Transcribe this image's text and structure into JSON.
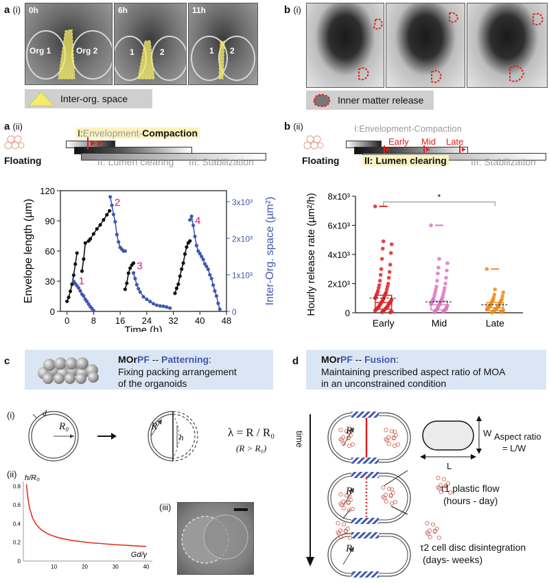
{
  "panel_a_i": {
    "label": "a",
    "sub": "(i)",
    "frames": [
      {
        "time": "0h",
        "left_label": "Org 1",
        "right_label": "Org 2"
      },
      {
        "time": "6h",
        "left_label": "1",
        "right_label": "2"
      },
      {
        "time": "11h",
        "left_label": "1",
        "right_label": "2"
      }
    ],
    "legend": "Inter-org. space",
    "legend_color": "#f4ec6a"
  },
  "panel_b_i": {
    "label": "b",
    "sub": "(i)",
    "legend": "Inner matter release",
    "legend_color": "#e02020"
  },
  "panel_a_ii": {
    "label": "a",
    "sub": "(ii)",
    "floating": "Floating",
    "stage1_prefix": "I:",
    "stage1_a": "Envelopment-",
    "stage1_b": "Compaction",
    "stage2": "II: Lumen clearing",
    "stage3": "III: Stabilization"
  },
  "panel_b_ii": {
    "label": "b",
    "sub": "(ii)",
    "floating": "Floating",
    "stage1": "I:Envelopment-Compaction",
    "stage2": "II: Lumen clearing",
    "stage3": "III: Stabilization",
    "markers": [
      "Early",
      "Mid",
      "Late"
    ]
  },
  "chart_data": [
    {
      "type": "line",
      "title": "",
      "xlabel": "Time (h)",
      "ylabel": "Envelope length (µm)",
      "y2label": "Inter-Org. space (µm²)",
      "xlim": [
        -2,
        48
      ],
      "ylim": [
        0,
        120
      ],
      "y2lim": [
        0,
        3300
      ],
      "xticks": [
        0,
        8,
        16,
        24,
        32,
        40,
        48
      ],
      "yticks": [
        0,
        30,
        60,
        90,
        120
      ],
      "y2ticks": [
        "0",
        "1x10³",
        "2x10³",
        "3x10³"
      ],
      "y2tick_values": [
        0,
        1000,
        2000,
        3000
      ],
      "series": [
        {
          "name": "Envelope length",
          "color": "#111111",
          "axis": "left",
          "segments": [
            [
              [
                0,
                10
              ],
              [
                0.5,
                14
              ],
              [
                1,
                20
              ],
              [
                1.5,
                27
              ],
              [
                2,
                36
              ],
              [
                2.5,
                47
              ],
              [
                3,
                58
              ]
            ],
            [
              [
                4.5,
                40
              ],
              [
                5,
                52
              ],
              [
                5.5,
                68
              ],
              [
                6.5,
                70
              ],
              [
                7,
                72
              ],
              [
                8,
                77
              ],
              [
                9,
                82
              ],
              [
                10,
                86
              ],
              [
                11,
                91
              ],
              [
                12,
                96
              ],
              [
                12.8,
                100
              ]
            ],
            [
              [
                17.5,
                22
              ],
              [
                18,
                28
              ],
              [
                18.5,
                38
              ],
              [
                19,
                43
              ],
              [
                19.5,
                46
              ],
              [
                20,
                48
              ]
            ],
            [
              [
                32.5,
                18
              ],
              [
                33,
                23
              ],
              [
                33.5,
                27
              ],
              [
                34,
                35
              ],
              [
                34.5,
                42
              ],
              [
                35,
                48
              ],
              [
                35.5,
                57
              ],
              [
                36,
                64
              ],
              [
                36.5,
                68
              ],
              [
                37,
                70
              ]
            ]
          ]
        },
        {
          "name": "Inter-Org. space",
          "color": "#3f57b0",
          "axis": "right",
          "segments": [
            [
              [
                2,
                820
              ],
              [
                2.5,
                760
              ],
              [
                3,
                700
              ],
              [
                3.5,
                640
              ],
              [
                4,
                560
              ],
              [
                4.5,
                470
              ],
              [
                5,
                420
              ],
              [
                5.5,
                330
              ],
              [
                6,
                270
              ],
              [
                6.5,
                200
              ],
              [
                7,
                130
              ],
              [
                7.5,
                80
              ],
              [
                8,
                20
              ]
            ],
            [
              [
                13,
                3130
              ],
              [
                13.5,
                2900
              ],
              [
                14,
                2650
              ],
              [
                14.5,
                2450
              ],
              [
                15,
                2100
              ],
              [
                15.5,
                1900
              ],
              [
                16,
                1750
              ],
              [
                16.5,
                1700
              ],
              [
                17,
                1650
              ],
              [
                17.5,
                1650
              ]
            ],
            [
              [
                20,
                1050
              ],
              [
                20.5,
                900
              ],
              [
                21,
                730
              ],
              [
                21.5,
                620
              ],
              [
                22,
                530
              ],
              [
                23,
                400
              ],
              [
                24,
                330
              ],
              [
                25,
                270
              ],
              [
                26,
                210
              ],
              [
                27,
                170
              ],
              [
                28,
                150
              ],
              [
                29,
                140
              ],
              [
                30,
                120
              ],
              [
                31,
                90
              ]
            ],
            [
              [
                37,
                2500
              ],
              [
                37.5,
                2600
              ],
              [
                38,
                2350
              ],
              [
                38.5,
                2050
              ],
              [
                39,
                1800
              ],
              [
                39.5,
                1650
              ],
              [
                40,
                1580
              ],
              [
                40.5,
                1500
              ],
              [
                41,
                1420
              ],
              [
                41.5,
                1300
              ],
              [
                42,
                1230
              ],
              [
                42.5,
                1150
              ],
              [
                43,
                1000
              ],
              [
                43.5,
                900
              ],
              [
                44,
                720
              ],
              [
                44.5,
                560
              ],
              [
                45,
                420
              ],
              [
                45.5,
                220
              ],
              [
                46,
                60
              ]
            ]
          ]
        }
      ],
      "annotations": [
        {
          "text": "1",
          "x": 3.5,
          "y": 27
        },
        {
          "text": "2",
          "x": 14.3,
          "y": 105
        },
        {
          "text": "3",
          "x": 21,
          "y": 42
        },
        {
          "text": "4",
          "x": 38.5,
          "y": 87
        }
      ],
      "annotation_color": "#d6147a"
    },
    {
      "type": "scatter",
      "title": "",
      "xlabel": "",
      "ylabel": "Hourly release rate (µm²/h)",
      "categories": [
        "Early",
        "Mid",
        "Late"
      ],
      "colors": [
        "#e02424",
        "#d977c6",
        "#f08a1a"
      ],
      "ylim": [
        0,
        8000
      ],
      "yticks": [
        "0",
        "2x10³",
        "4x10³",
        "6x10³",
        "8x10³"
      ],
      "ytick_values": [
        0,
        2000,
        4000,
        6000,
        8000
      ],
      "significance": "*",
      "box": [
        {
          "q1": 250,
          "median": 700,
          "q3": 1200,
          "mean": 1000,
          "max": 7300
        },
        {
          "q1": 200,
          "median": 550,
          "q3": 800,
          "mean": 750,
          "max": 6000
        },
        {
          "q1": 150,
          "median": 350,
          "q3": 700,
          "mean": 550,
          "max": 3000
        }
      ],
      "points": [
        [
          7300,
          4900,
          4700,
          4400,
          4100,
          3700,
          3300,
          3000,
          2800,
          2600,
          2400,
          2200,
          2000,
          1900,
          1800,
          1700,
          1600,
          1500,
          1400,
          1350,
          1300,
          1250,
          1200,
          1100,
          1050,
          1000,
          950,
          900,
          850,
          800,
          780,
          750,
          700,
          650,
          620,
          600,
          550,
          500,
          450,
          420,
          400,
          380,
          350,
          320,
          300,
          280,
          250,
          220,
          200,
          180,
          150,
          120,
          100,
          80,
          60,
          40,
          20
        ],
        [
          6000,
          3700,
          3400,
          3100,
          2900,
          2700,
          2400,
          2200,
          2000,
          1800,
          1700,
          1600,
          1500,
          1400,
          1300,
          1200,
          1100,
          1000,
          950,
          900,
          850,
          800,
          750,
          700,
          650,
          600,
          550,
          500,
          450,
          400,
          350,
          300,
          280,
          250,
          200,
          150,
          120,
          100,
          80,
          50,
          30
        ],
        [
          3000,
          1600,
          1400,
          1250,
          1150,
          1050,
          950,
          900,
          850,
          800,
          750,
          700,
          650,
          600,
          550,
          500,
          450,
          420,
          400,
          380,
          350,
          320,
          300,
          280,
          250,
          220,
          200,
          180,
          150,
          120,
          100,
          80,
          60,
          40,
          20
        ]
      ]
    },
    {
      "type": "line",
      "title": "",
      "xlabel": "Gd/γ",
      "ylabel": "h/R₀",
      "xlim": [
        0,
        42
      ],
      "ylim": [
        0,
        0.85
      ],
      "xticks": [
        10,
        20,
        30,
        40
      ],
      "yticks": [
        "0",
        "0.2",
        "0.4",
        "0.6",
        "0.8"
      ],
      "ytick_values": [
        0,
        0.2,
        0.4,
        0.6,
        0.8
      ],
      "series": [
        {
          "name": "h/R0",
          "color": "#e0301e",
          "x": [
            1,
            1.5,
            2,
            3,
            4,
            5,
            6,
            8,
            10,
            12,
            15,
            18,
            22,
            26,
            30,
            35,
            40
          ],
          "y": [
            0.82,
            0.67,
            0.57,
            0.46,
            0.4,
            0.36,
            0.33,
            0.29,
            0.265,
            0.245,
            0.225,
            0.21,
            0.195,
            0.185,
            0.175,
            0.165,
            0.155
          ]
        }
      ]
    }
  ],
  "panel_c": {
    "label": "c",
    "title_pre": "MOr",
    "title_pf": "PF",
    "title_sep": " -- ",
    "title_word": "Patterning",
    "title_post": ":",
    "desc1": "Fixing packing arrangement",
    "desc2": "of the organoids",
    "sub_i": "(i)",
    "sub_ii": "(ii)",
    "sub_iii": "(iii)",
    "d_label": "d",
    "r0_label": "R₀",
    "r_label": "R",
    "h_label": "h",
    "lambda_eq": "λ = R / R₀",
    "lambda_cond": "(R > R₀)"
  },
  "panel_d": {
    "label": "d",
    "title_pre": "MOr",
    "title_pf": "PF",
    "title_sep": " -- ",
    "title_word": "Fusion",
    "title_post": ":",
    "desc1": "Maintaining prescribed aspect ratio of MOA",
    "desc2": "in an unconstrained condition",
    "time_label": "time",
    "r_label": "R",
    "w_label": "W",
    "l_label": "L",
    "aspect1": "Aspect ratio",
    "aspect2": "= L/W",
    "tau1a": "τ1 plastic flow",
    "tau1b": "(hours - day)",
    "tau2a": "τ2 cell disc disintegration",
    "tau2b": "(days- weeks)"
  },
  "colors": {
    "accent_blue": "#3f57b0",
    "banner": "#dbe6f4",
    "magenta": "#d6147a",
    "red": "#e02020"
  }
}
